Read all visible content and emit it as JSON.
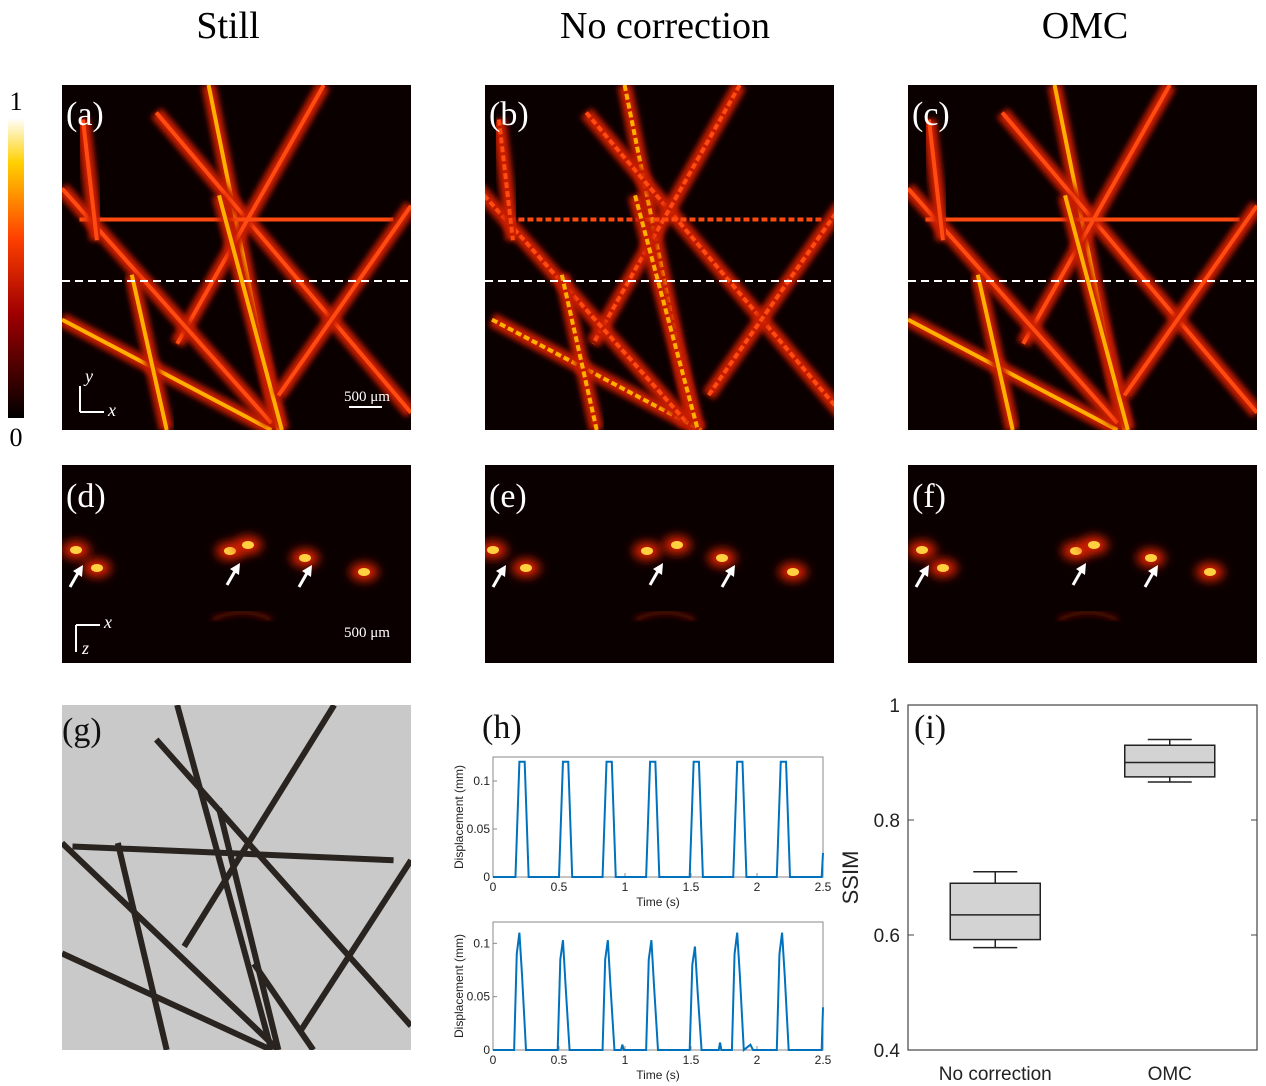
{
  "column_titles": [
    "Still",
    "No correction",
    "OMC"
  ],
  "colorbar": {
    "ticks": [
      0,
      1
    ]
  },
  "panel_labels": [
    "(a)",
    "(b)",
    "(c)",
    "(d)",
    "(e)",
    "(f)",
    "(g)",
    "(h)",
    "(i)"
  ],
  "scale_bar": "500 μm",
  "axis_letters": {
    "x": "x",
    "y": "y",
    "z": "z"
  },
  "chart_data": [
    {
      "type": "line",
      "xlabel": "Time (s)",
      "ylabel": "Displacement (mm)",
      "color": "#0072bd",
      "x": [
        0,
        0.17,
        0.2,
        0.24,
        0.27,
        0.5,
        0.53,
        0.57,
        0.6,
        0.83,
        0.86,
        0.9,
        0.93,
        1.16,
        1.19,
        1.23,
        1.26,
        1.49,
        1.52,
        1.56,
        1.59,
        1.82,
        1.85,
        1.89,
        1.92,
        2.15,
        2.18,
        2.22,
        2.25,
        2.49,
        2.5
      ],
      "values": [
        0,
        0,
        0.12,
        0.12,
        0,
        0,
        0.12,
        0.12,
        0,
        0,
        0.12,
        0.12,
        0,
        0,
        0.12,
        0.12,
        0,
        0,
        0.12,
        0.12,
        0,
        0,
        0.12,
        0.12,
        0,
        0,
        0.12,
        0.12,
        0,
        0,
        0.025
      ],
      "xlim": [
        0,
        2.5
      ],
      "xticks": [
        0,
        0.5,
        1,
        1.5,
        2,
        2.5
      ],
      "ylim": [
        0,
        0.125
      ],
      "yticks": [
        0,
        0.05,
        0.1
      ]
    },
    {
      "type": "line",
      "xlabel": "Time (s)",
      "ylabel": "Displacement (mm)",
      "color": "#0072bd",
      "x": [
        0,
        0.16,
        0.18,
        0.2,
        0.22,
        0.25,
        0.49,
        0.51,
        0.53,
        0.55,
        0.58,
        0.83,
        0.85,
        0.87,
        0.89,
        0.92,
        0.97,
        0.98,
        0.99,
        1.16,
        1.18,
        1.2,
        1.22,
        1.25,
        1.49,
        1.51,
        1.53,
        1.55,
        1.58,
        1.71,
        1.72,
        1.73,
        1.81,
        1.83,
        1.85,
        1.87,
        1.9,
        1.95,
        1.97,
        2.15,
        2.17,
        2.19,
        2.21,
        2.24,
        2.49,
        2.5
      ],
      "values": [
        0,
        0,
        0.09,
        0.11,
        0.07,
        0,
        0,
        0.085,
        0.103,
        0.06,
        0,
        0,
        0.085,
        0.103,
        0.06,
        0,
        0,
        0.005,
        0,
        0,
        0.085,
        0.103,
        0.06,
        0,
        0,
        0.08,
        0.097,
        0.055,
        0,
        0,
        0.007,
        0,
        0,
        0.09,
        0.11,
        0.07,
        0,
        0.005,
        0,
        0,
        0.09,
        0.11,
        0.07,
        0,
        0,
        0.04
      ],
      "xlim": [
        0,
        2.5
      ],
      "xticks": [
        0,
        0.5,
        1,
        1.5,
        2,
        2.5
      ],
      "ylim": [
        0,
        0.12
      ],
      "yticks": [
        0,
        0.05,
        0.1
      ]
    },
    {
      "type": "box",
      "ylabel": "SSIM",
      "categories": [
        "No correction",
        "OMC"
      ],
      "color": "#d3d3d3",
      "boxes": [
        {
          "min": 0.578,
          "q1": 0.592,
          "median": 0.635,
          "q3": 0.69,
          "max": 0.71
        },
        {
          "min": 0.866,
          "q1": 0.875,
          "median": 0.9,
          "q3": 0.93,
          "max": 0.94
        }
      ],
      "ylim": [
        0.4,
        1
      ],
      "yticks": [
        0.4,
        0.6,
        0.8,
        1
      ]
    }
  ]
}
